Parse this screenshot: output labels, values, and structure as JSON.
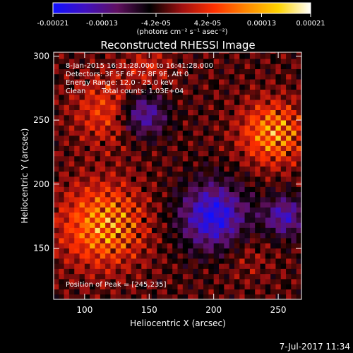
{
  "chart_data": {
    "type": "heatmap",
    "title": "Reconstructed RHESSI Image",
    "xlabel": "Heliocentric X (arcsec)",
    "ylabel": "Heliocentric Y (arcsec)",
    "xlim": [
      76,
      268
    ],
    "ylim": [
      110,
      303
    ],
    "x_ticks": [
      100,
      150,
      200,
      250
    ],
    "y_ticks": [
      150,
      200,
      250,
      300
    ],
    "colorbar": {
      "min": -0.00021,
      "max": 0.00021,
      "tick_values": [
        -0.00021,
        -0.00013,
        -4.2e-05,
        4.2e-05,
        0.00013,
        0.00021
      ],
      "tick_labels": [
        "-0.00021",
        "-0.00013",
        "-4.2e-05",
        "4.2e-05",
        "0.00013",
        "0.00021"
      ],
      "units_label": "(photons cm⁻² s⁻¹ asec⁻²)",
      "colors": [
        "#1010ff",
        "#4010c0",
        "#601060",
        "#000000",
        "#a01010",
        "#ff3000",
        "#ff8800",
        "#ffd400",
        "#ffffff"
      ]
    },
    "annotations": {
      "time_range": "8-Jan-2015 16:31:28.000 to 16:41:28.000",
      "detectors": "Detectors: 3F 5F 6F 7F 8F 9F, Att 0",
      "energy_range": "Energy Range: 12.0 - 25.0 keV",
      "clean": "Clean",
      "total_counts": "Total counts: 1.03E+04",
      "peak": "Position of Peak = [245,235]"
    },
    "sources": [
      {
        "x": 113,
        "y": 168,
        "amplitude": 0.00021,
        "width": 32
      },
      {
        "x": 245,
        "y": 240,
        "amplitude": 0.00021,
        "width": 24
      },
      {
        "x": 118,
        "y": 258,
        "amplitude": 0.00013,
        "width": 26
      },
      {
        "x": 150,
        "y": 290,
        "amplitude": 8e-05,
        "width": 18
      },
      {
        "x": 225,
        "y": 145,
        "amplitude": 5e-05,
        "width": 20
      }
    ],
    "negative_regions": [
      {
        "x": 200,
        "y": 175,
        "amplitude": -0.00016,
        "width": 26
      },
      {
        "x": 255,
        "y": 175,
        "amplitude": -0.00012,
        "width": 16
      },
      {
        "x": 145,
        "y": 255,
        "amplitude": -0.00013,
        "width": 18
      }
    ]
  },
  "footer": {
    "date": "7-Jul-2017 11:34"
  }
}
